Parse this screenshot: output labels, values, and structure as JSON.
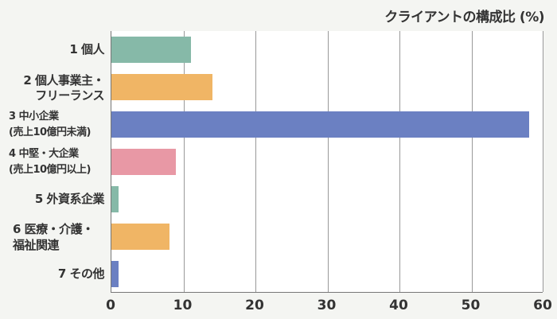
{
  "chart_data": {
    "type": "bar",
    "orientation": "horizontal",
    "title": "クライアントの構成比 (%)",
    "xlabel": "",
    "ylabel": "",
    "xlim": [
      0,
      60
    ],
    "xticks": [
      0,
      10,
      20,
      30,
      40,
      50,
      60
    ],
    "grid": true,
    "legend": null,
    "categories": [
      "1 個人",
      "2 個人事業主・フリーランス",
      "3 中小企業 (売上10億円未満)",
      "4 中堅・大企業 (売上10億円以上)",
      "5 外資系企業",
      "6 医療・介護・福祉関連",
      "7 その他"
    ],
    "values": [
      11.0,
      14.0,
      58.0,
      9.0,
      1.0,
      8.1,
      1.0
    ],
    "colors": [
      "#86b9a8",
      "#f0b565",
      "#6b80c2",
      "#e898a5",
      "#86b9a8",
      "#f0b565",
      "#6b80c2"
    ]
  },
  "title": "クライアントの構成比 (%)",
  "labels": {
    "c1": "1 個人",
    "c2_line1": "2 個人事業主・",
    "c2_line2": "フリーランス",
    "c3_line1": "3 中小企業",
    "c3_line2": "(売上10億円未満)",
    "c4_line1": "4 中堅・大企業",
    "c4_line2": "(売上10億円以上)",
    "c5": "5 外資系企業",
    "c6_line1": "6 医療・介護・",
    "c6_line2": "福祉関連",
    "c7": "7 その他"
  },
  "ticks": [
    "0",
    "10",
    "20",
    "30",
    "40",
    "50",
    "60"
  ]
}
